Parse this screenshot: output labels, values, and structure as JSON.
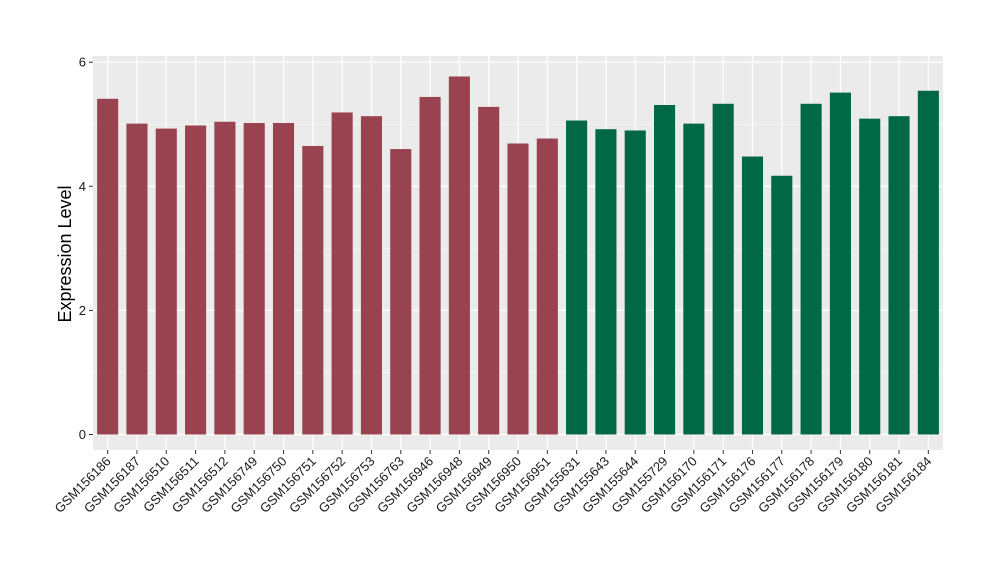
{
  "chart_data": {
    "type": "bar",
    "title": "",
    "xlabel": "",
    "ylabel": "Expression Level",
    "ylim": [
      -0.25,
      6.1
    ],
    "yticks": [
      0,
      2,
      4,
      6
    ],
    "grid": true,
    "legend": "none",
    "panel_color": "#ebebeb",
    "categories": [
      "GSM156186",
      "GSM156187",
      "GSM156510",
      "GSM156511",
      "GSM156512",
      "GSM156749",
      "GSM156750",
      "GSM156751",
      "GSM156752",
      "GSM156753",
      "GSM156763",
      "GSM156946",
      "GSM156948",
      "GSM156949",
      "GSM156950",
      "GSM156951",
      "GSM155631",
      "GSM155643",
      "GSM155644",
      "GSM155729",
      "GSM156170",
      "GSM156171",
      "GSM156176",
      "GSM156177",
      "GSM156178",
      "GSM156179",
      "GSM156180",
      "GSM156181",
      "GSM156184"
    ],
    "values": [
      5.41,
      5.01,
      4.93,
      4.98,
      5.04,
      5.02,
      5.02,
      4.65,
      5.19,
      5.13,
      4.6,
      5.44,
      5.77,
      5.28,
      4.69,
      4.77,
      5.06,
      4.92,
      4.9,
      5.31,
      5.01,
      5.33,
      4.48,
      4.17,
      5.33,
      5.51,
      5.09,
      5.13,
      5.54
    ],
    "groups": [
      {
        "color": "#9a4350",
        "count": 16
      },
      {
        "color": "#006845",
        "count": 13
      }
    ]
  }
}
